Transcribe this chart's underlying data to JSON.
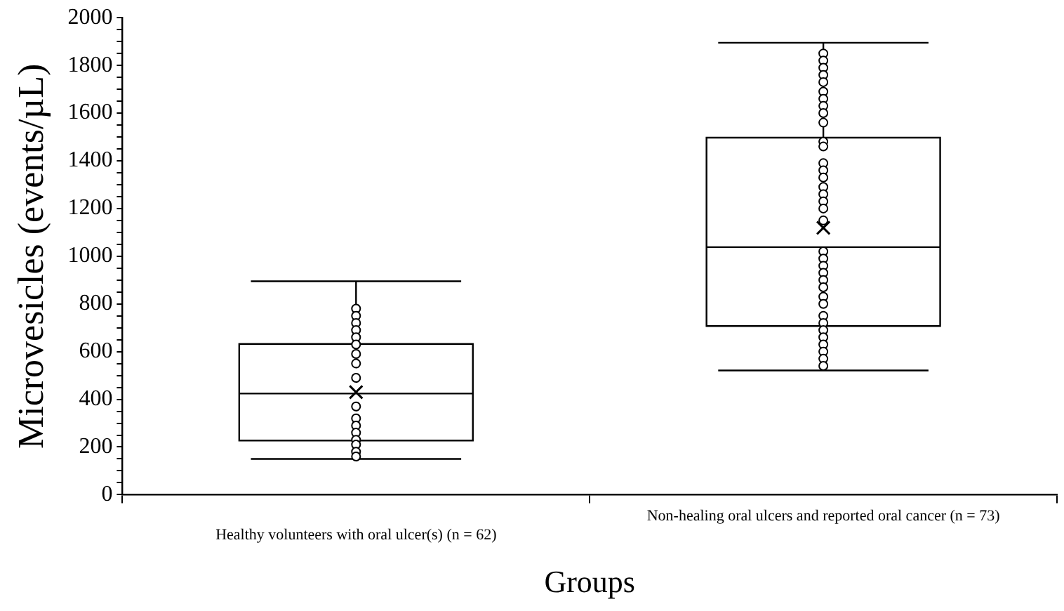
{
  "chart_data": {
    "type": "box",
    "xlabel": "Groups",
    "ylabel": "Microvesicles (events/µL)",
    "categories": [
      "Healthy volunteers with oral ulcer(s) (n = 62)",
      "Non-healing oral ulcers and reported oral cancer (n = 73)"
    ],
    "boxes": [
      {
        "low": 150,
        "q1": 227,
        "median": 424,
        "q3": 632,
        "high": 895,
        "mean": 430
      },
      {
        "low": 521,
        "q1": 707,
        "median": 1038,
        "q3": 1497,
        "high": 1895,
        "mean": 1119
      }
    ],
    "series": [
      {
        "type": "scatter",
        "color": "#000000",
        "x": [
          "Healthy volunteers with oral ulcer(s) (n = 62)",
          "Healthy volunteers with oral ulcer(s) (n = 62)",
          "Healthy volunteers with oral ulcer(s) (n = 62)",
          "Healthy volunteers with oral ulcer(s) (n = 62)",
          "Healthy volunteers with oral ulcer(s) (n = 62)",
          "Healthy volunteers with oral ulcer(s) (n = 62)",
          "Healthy volunteers with oral ulcer(s) (n = 62)",
          "Healthy volunteers with oral ulcer(s) (n = 62)",
          "Healthy volunteers with oral ulcer(s) (n = 62)",
          "Healthy volunteers with oral ulcer(s) (n = 62)",
          "Healthy volunteers with oral ulcer(s) (n = 62)",
          "Healthy volunteers with oral ulcer(s) (n = 62)",
          "Healthy volunteers with oral ulcer(s) (n = 62)",
          "Healthy volunteers with oral ulcer(s) (n = 62)",
          "Healthy volunteers with oral ulcer(s) (n = 62)",
          "Healthy volunteers with oral ulcer(s) (n = 62)",
          "Healthy volunteers with oral ulcer(s) (n = 62)"
        ],
        "values": [
          780,
          750,
          720,
          690,
          660,
          630,
          590,
          550,
          490,
          370,
          320,
          290,
          260,
          230,
          210,
          180,
          160
        ]
      },
      {
        "type": "scatter",
        "color": "#000000",
        "x": [
          "Non-healing oral ulcers and reported oral cancer (n = 73)",
          "Non-healing oral ulcers and reported oral cancer (n = 73)",
          "Non-healing oral ulcers and reported oral cancer (n = 73)",
          "Non-healing oral ulcers and reported oral cancer (n = 73)",
          "Non-healing oral ulcers and reported oral cancer (n = 73)",
          "Non-healing oral ulcers and reported oral cancer (n = 73)",
          "Non-healing oral ulcers and reported oral cancer (n = 73)",
          "Non-healing oral ulcers and reported oral cancer (n = 73)",
          "Non-healing oral ulcers and reported oral cancer (n = 73)",
          "Non-healing oral ulcers and reported oral cancer (n = 73)",
          "Non-healing oral ulcers and reported oral cancer (n = 73)",
          "Non-healing oral ulcers and reported oral cancer (n = 73)",
          "Non-healing oral ulcers and reported oral cancer (n = 73)",
          "Non-healing oral ulcers and reported oral cancer (n = 73)",
          "Non-healing oral ulcers and reported oral cancer (n = 73)",
          "Non-healing oral ulcers and reported oral cancer (n = 73)",
          "Non-healing oral ulcers and reported oral cancer (n = 73)",
          "Non-healing oral ulcers and reported oral cancer (n = 73)",
          "Non-healing oral ulcers and reported oral cancer (n = 73)",
          "Non-healing oral ulcers and reported oral cancer (n = 73)",
          "Non-healing oral ulcers and reported oral cancer (n = 73)",
          "Non-healing oral ulcers and reported oral cancer (n = 73)",
          "Non-healing oral ulcers and reported oral cancer (n = 73)",
          "Non-healing oral ulcers and reported oral cancer (n = 73)",
          "Non-healing oral ulcers and reported oral cancer (n = 73)",
          "Non-healing oral ulcers and reported oral cancer (n = 73)",
          "Non-healing oral ulcers and reported oral cancer (n = 73)",
          "Non-healing oral ulcers and reported oral cancer (n = 73)",
          "Non-healing oral ulcers and reported oral cancer (n = 73)",
          "Non-healing oral ulcers and reported oral cancer (n = 73)",
          "Non-healing oral ulcers and reported oral cancer (n = 73)",
          "Non-healing oral ulcers and reported oral cancer (n = 73)",
          "Non-healing oral ulcers and reported oral cancer (n = 73)",
          "Non-healing oral ulcers and reported oral cancer (n = 73)",
          "Non-healing oral ulcers and reported oral cancer (n = 73)",
          "Non-healing oral ulcers and reported oral cancer (n = 73)"
        ],
        "values": [
          1850,
          1820,
          1790,
          1760,
          1730,
          1690,
          1660,
          1630,
          1600,
          1560,
          1480,
          1460,
          1390,
          1360,
          1330,
          1290,
          1260,
          1230,
          1200,
          1150,
          1020,
          990,
          960,
          930,
          900,
          870,
          830,
          800,
          750,
          720,
          690,
          660,
          630,
          600,
          570,
          540
        ]
      }
    ],
    "marker": "circle",
    "ylim": [
      0,
      2000
    ],
    "yticks": [
      0,
      {
        "value": 50,
        "label": null
      },
      {
        "value": 100,
        "label": null
      },
      {
        "value": 150,
        "label": null
      },
      200,
      {
        "value": 250,
        "label": null
      },
      {
        "value": 300,
        "label": null
      },
      {
        "value": 350,
        "label": null
      },
      400,
      {
        "value": 450,
        "label": null
      },
      {
        "value": 500,
        "label": null
      },
      {
        "value": 550,
        "label": null
      },
      600,
      {
        "value": 650,
        "label": null
      },
      {
        "value": 700,
        "label": null
      },
      {
        "value": 750,
        "label": null
      },
      800,
      {
        "value": 850,
        "label": null
      },
      {
        "value": 900,
        "label": null
      },
      {
        "value": 950,
        "label": null
      },
      1000,
      {
        "value": 1050,
        "label": null
      },
      {
        "value": 1100,
        "label": null
      },
      {
        "value": 1150,
        "label": null
      },
      1200,
      {
        "value": 1250,
        "label": null
      },
      {
        "value": 1300,
        "label": null
      },
      {
        "value": 1350,
        "label": null
      },
      1400,
      {
        "value": 1450,
        "label": null
      },
      {
        "value": 1500,
        "label": null
      },
      {
        "value": 1550,
        "label": null
      },
      1600,
      {
        "value": 1650,
        "label": null
      },
      {
        "value": 1700,
        "label": null
      },
      {
        "value": 1750,
        "label": null
      },
      1800,
      {
        "value": 1850,
        "label": null
      },
      {
        "value": 1900,
        "label": null
      },
      {
        "value": 1950,
        "label": null
      },
      2000
    ],
    "grid": false,
    "legend": false
  }
}
